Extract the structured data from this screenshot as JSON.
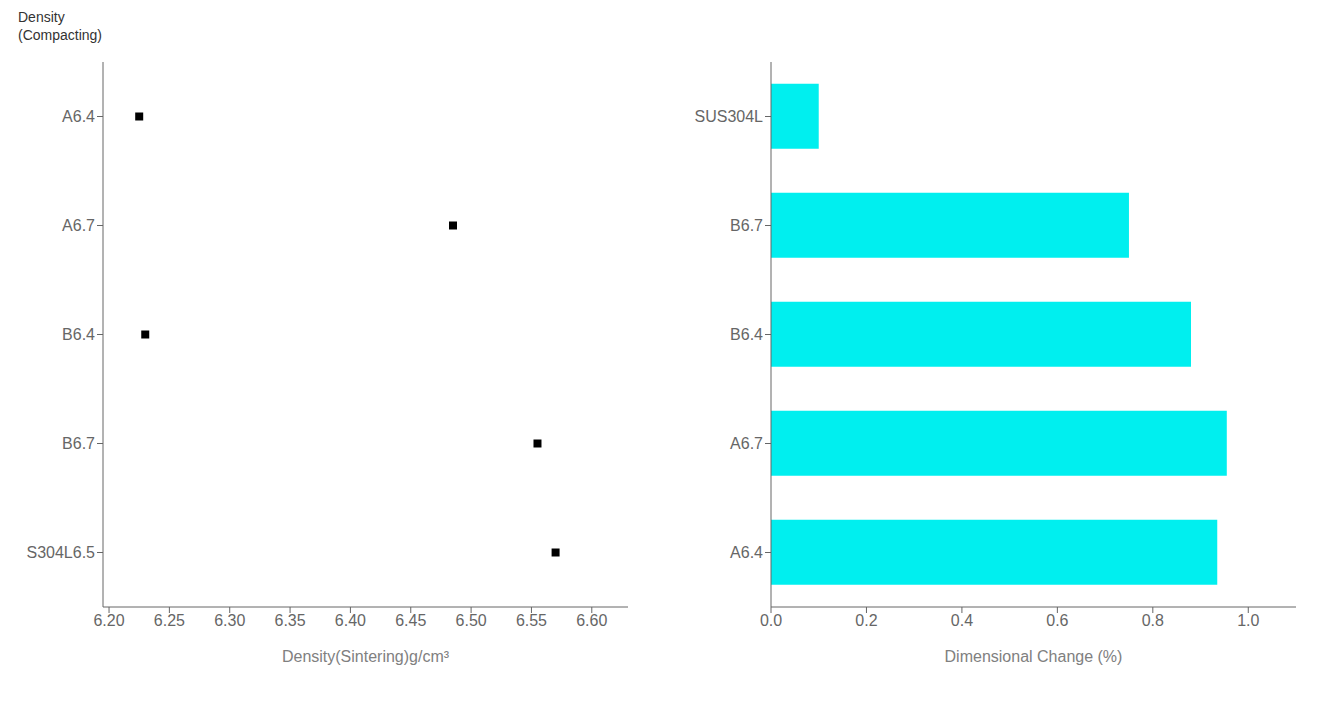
{
  "chart_data": [
    {
      "type": "scatter",
      "ylabel": "Density\n(Compacting)",
      "xlabel": "Density(Sintering)g/cm³",
      "categories": [
        "A6.4",
        "A6.7",
        "B6.4",
        "B6.7",
        "S304L6.5"
      ],
      "values": [
        6.225,
        6.485,
        6.23,
        6.555,
        6.57
      ],
      "color": "#000000",
      "marker": "square",
      "xlim": [
        6.195,
        6.63
      ],
      "xticks": [
        {
          "value": 6.2,
          "label": "6.20"
        },
        6.25,
        {
          "value": 6.3,
          "label": "6.30"
        },
        6.35,
        {
          "value": 6.4,
          "label": "6.40"
        },
        6.45,
        {
          "value": 6.5,
          "label": "6.50"
        },
        6.55,
        {
          "value": 6.6,
          "label": "6.60"
        }
      ]
    },
    {
      "type": "bar",
      "orientation": "horizontal",
      "xlabel": "Dimensional Change (%)",
      "categories": [
        "A6.4",
        "A6.7",
        "B6.4",
        "B6.7",
        "SUS304L"
      ],
      "values": [
        0.935,
        0.955,
        0.88,
        0.75,
        0.1
      ],
      "color": "#00EFEF",
      "xlim": [
        0.0,
        1.1
      ],
      "xticks": [
        {
          "value": 0.0,
          "label": "0.0"
        },
        0.2,
        0.4,
        0.6,
        0.8,
        {
          "value": 1.0,
          "label": "1.0"
        }
      ]
    }
  ]
}
